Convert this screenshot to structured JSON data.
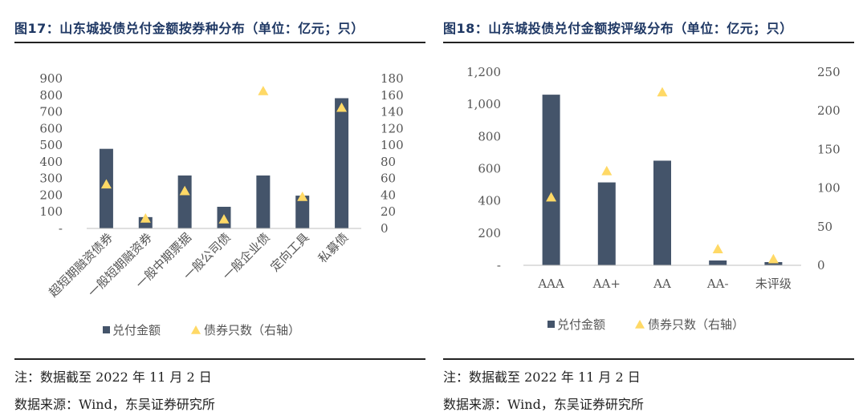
{
  "left_panel": {
    "title": "图17：山东城投债兑付金额按券种分布（单位：亿元；只）",
    "note": "注：数据截至 2022 年 11 月 2 日",
    "source": "数据来源：Wind，东吴证券研究所"
  },
  "right_panel": {
    "title": "图18：山东城投债兑付金额按评级分布（单位：亿元；只）",
    "note": "注：数据截至 2022 年 11 月 2 日",
    "source": "数据来源：Wind，东吴证券研究所"
  },
  "chart_data": [
    {
      "type": "bar",
      "categories": [
        "超短期融资债券",
        "一般短期融资券",
        "一般中期票据",
        "一般公司债",
        "一般企业债",
        "定向工具",
        "私募债"
      ],
      "series": [
        {
          "name": "兑付金额",
          "kind": "bar",
          "axis": "left",
          "color": "#44546a",
          "values": [
            478,
            68,
            318,
            130,
            318,
            197,
            782
          ]
        },
        {
          "name": "债券只数（右轴）",
          "kind": "marker",
          "axis": "right",
          "color": "#ffd966",
          "values": [
            53,
            12,
            45,
            11,
            165,
            38,
            145
          ]
        }
      ],
      "y_left": {
        "ticks": [
          "-",
          "100",
          "200",
          "300",
          "400",
          "500",
          "600",
          "700",
          "800",
          "900"
        ],
        "ylim": [
          0,
          900
        ]
      },
      "y_right": {
        "ticks": [
          "0",
          "20",
          "40",
          "60",
          "80",
          "100",
          "120",
          "140",
          "160",
          "180"
        ],
        "ylim": [
          0,
          180
        ]
      },
      "legend": {
        "position": "bottom"
      }
    },
    {
      "type": "bar",
      "categories": [
        "AAA",
        "AA+",
        "AA",
        "AA-",
        "未评级"
      ],
      "series": [
        {
          "name": "兑付金额",
          "kind": "bar",
          "axis": "left",
          "color": "#44546a",
          "values": [
            1060,
            515,
            650,
            30,
            20
          ]
        },
        {
          "name": "债券只数（右轴）",
          "kind": "marker",
          "axis": "right",
          "color": "#ffd966",
          "values": [
            88,
            122,
            224,
            21,
            8
          ]
        }
      ],
      "y_left": {
        "ticks": [
          "-",
          "200",
          "400",
          "600",
          "800",
          "1,000",
          "1,200"
        ],
        "ylim": [
          0,
          1200
        ]
      },
      "y_right": {
        "ticks": [
          "0",
          "50",
          "100",
          "150",
          "200",
          "250"
        ],
        "ylim": [
          0,
          250
        ]
      },
      "legend": {
        "position": "bottom"
      }
    }
  ]
}
